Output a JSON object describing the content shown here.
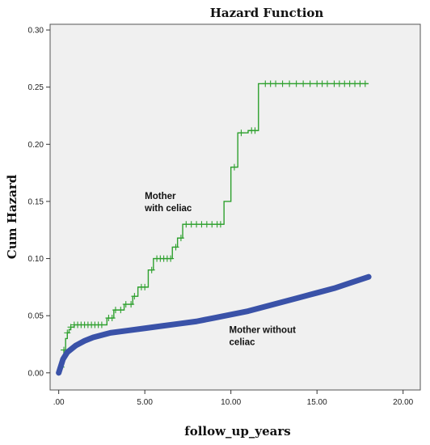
{
  "chart_data": {
    "type": "line",
    "title": "Hazard Function",
    "xlabel": "follow_up_years",
    "ylabel": "Cum Hazard",
    "xlim": [
      -0.5,
      21
    ],
    "ylim": [
      -0.015,
      0.305
    ],
    "x_ticks": [
      0,
      5,
      10,
      15,
      20
    ],
    "x_tick_labels": [
      ".00",
      "5.00",
      "10.00",
      "15.00",
      "20.00"
    ],
    "y_ticks": [
      0,
      0.05,
      0.1,
      0.15,
      0.2,
      0.25,
      0.3
    ],
    "y_tick_labels": [
      "0.00",
      "0.05",
      "0.10",
      "0.15",
      "0.20",
      "0.25",
      "0.30"
    ],
    "grid": false,
    "plot_background": "#f0f0f0",
    "series": [
      {
        "name": "",
        "color": "#2ea02e",
        "style": "step",
        "censor_marks": true,
        "x": [
          0,
          0.1,
          0.2,
          0.3,
          0.4,
          0.5,
          0.6,
          0.7,
          0.9,
          2.8,
          3.2,
          3.8,
          4.3,
          4.6,
          5.2,
          5.5,
          6.6,
          6.9,
          7.2,
          9.6,
          10.0,
          10.4,
          11.0,
          11.6,
          18.0
        ],
        "y": [
          0,
          0.005,
          0.01,
          0.02,
          0.03,
          0.035,
          0.038,
          0.04,
          0.042,
          0.048,
          0.055,
          0.06,
          0.067,
          0.075,
          0.09,
          0.1,
          0.11,
          0.118,
          0.13,
          0.15,
          0.18,
          0.21,
          0.212,
          0.253,
          0.253
        ],
        "censor_x": [
          0.15,
          0.3,
          0.5,
          0.7,
          0.9,
          1.1,
          1.3,
          1.5,
          1.7,
          1.9,
          2.1,
          2.3,
          2.5,
          2.9,
          3.1,
          3.3,
          3.6,
          3.9,
          4.2,
          4.4,
          4.8,
          5.0,
          5.4,
          5.7,
          5.9,
          6.1,
          6.3,
          6.5,
          6.8,
          7.1,
          7.4,
          7.7,
          8.0,
          8.3,
          8.6,
          8.9,
          9.2,
          9.4,
          10.2,
          10.6,
          11.2,
          11.4,
          12.0,
          12.3,
          12.6,
          13.0,
          13.4,
          13.8,
          14.2,
          14.6,
          15.0,
          15.3,
          15.6,
          16.0,
          16.3,
          16.6,
          16.9,
          17.2,
          17.5,
          17.8
        ]
      },
      {
        "name": "",
        "color": "#3a52a8",
        "style": "thick-line",
        "censor_marks": false,
        "x": [
          0,
          0.25,
          0.5,
          1,
          1.5,
          2,
          3,
          4,
          5,
          6,
          7,
          8,
          9,
          10,
          11,
          12,
          13,
          14,
          15,
          16,
          17,
          18
        ],
        "y": [
          0,
          0.012,
          0.018,
          0.024,
          0.028,
          0.031,
          0.035,
          0.037,
          0.039,
          0.041,
          0.043,
          0.045,
          0.048,
          0.051,
          0.054,
          0.058,
          0.062,
          0.066,
          0.07,
          0.074,
          0.079,
          0.084
        ]
      }
    ],
    "annotations": [
      {
        "lines": [
          "Mother",
          "with celiac"
        ],
        "x": 5.0,
        "y": 0.152
      },
      {
        "lines": [
          "Mother without",
          "celiac"
        ],
        "x": 9.9,
        "y": 0.035
      }
    ]
  }
}
